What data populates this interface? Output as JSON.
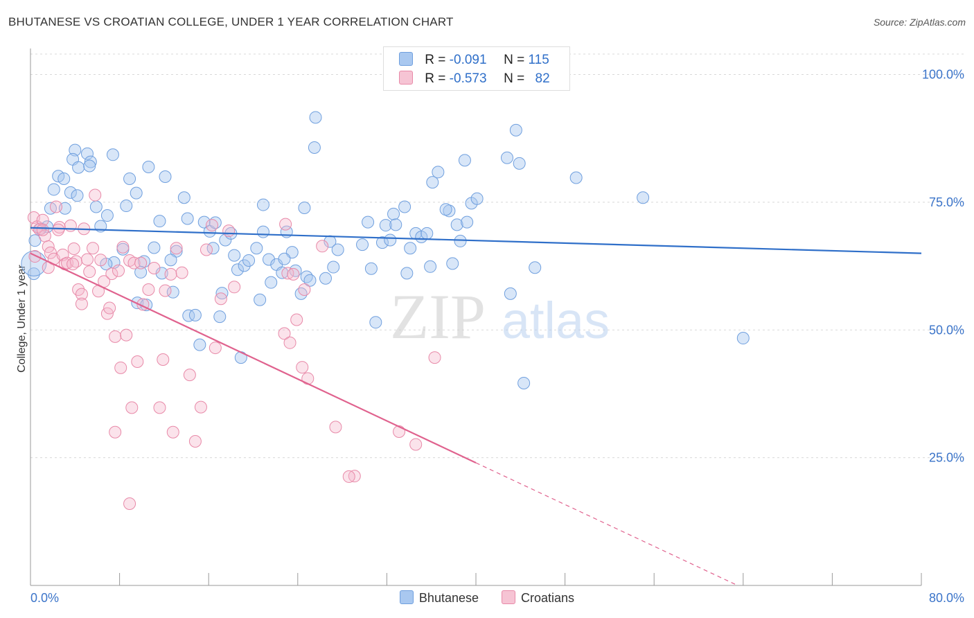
{
  "title": "BHUTANESE VS CROATIAN COLLEGE, UNDER 1 YEAR CORRELATION CHART",
  "source": "Source: ZipAtlas.com",
  "watermark": {
    "zip": "ZIP",
    "atlas": "atlas"
  },
  "legend_top": {
    "rows": [
      {
        "r_label": "R =",
        "r_value": "-0.091",
        "n_label": "N =",
        "n_value": "115"
      },
      {
        "r_label": "R =",
        "r_value": "-0.573",
        "n_label": "N =",
        "n_value": "82"
      }
    ]
  },
  "legend_bottom": {
    "items": [
      "Bhutanese",
      "Croatians"
    ]
  },
  "colors": {
    "blue_fill": "#a9c8f0",
    "blue_stroke": "#6f9fde",
    "blue_line": "#2f6fc9",
    "pink_fill": "#f6b8cc",
    "pink_stroke": "#e889a8",
    "pink_line": "#e0628e",
    "grid": "#d8d8d8",
    "tick_label": "#3b74c9"
  },
  "chart_data": {
    "type": "scatter",
    "title": "BHUTANESE VS CROATIAN COLLEGE, UNDER 1 YEAR CORRELATION CHART",
    "xlabel": "",
    "ylabel": "College, Under 1 year",
    "xlim": [
      0,
      80
    ],
    "ylim": [
      0,
      104
    ],
    "x_tick_labels": [
      "0.0%",
      "80.0%"
    ],
    "y_ticks": [
      25,
      50,
      75,
      100
    ],
    "y_tick_labels": [
      "25.0%",
      "50.0%",
      "75.0%",
      "100.0%"
    ],
    "grid": true,
    "legend_position": "top-center",
    "series": [
      {
        "name": "Bhutanese",
        "r": -0.091,
        "n": 115,
        "trend": {
          "x": [
            0,
            80
          ],
          "y": [
            70.0,
            65.0
          ],
          "dashed_from": null
        },
        "points": [
          [
            1.5,
            70.2
          ],
          [
            1.8,
            73.8
          ],
          [
            2.1,
            77.5
          ],
          [
            2.5,
            80.1
          ],
          [
            3.0,
            79.6
          ],
          [
            3.6,
            76.9
          ],
          [
            4.0,
            85.2
          ],
          [
            3.8,
            83.4
          ],
          [
            4.3,
            81.8
          ],
          [
            5.1,
            84.5
          ],
          [
            5.4,
            82.9
          ],
          [
            5.3,
            82.1
          ],
          [
            4.2,
            76.3
          ],
          [
            5.9,
            74.1
          ],
          [
            6.3,
            70.3
          ],
          [
            6.9,
            72.4
          ],
          [
            7.4,
            84.3
          ],
          [
            8.6,
            74.3
          ],
          [
            8.9,
            79.6
          ],
          [
            9.5,
            76.8
          ],
          [
            10.6,
            81.9
          ],
          [
            11.6,
            71.3
          ],
          [
            12.1,
            80.0
          ],
          [
            13.8,
            75.9
          ],
          [
            14.1,
            71.8
          ],
          [
            13.1,
            65.4
          ],
          [
            12.6,
            63.7
          ],
          [
            11.1,
            66.1
          ],
          [
            10.2,
            63.4
          ],
          [
            9.9,
            61.3
          ],
          [
            9.6,
            55.3
          ],
          [
            8.3,
            65.8
          ],
          [
            7.5,
            63.2
          ],
          [
            6.8,
            62.9
          ],
          [
            10.4,
            54.9
          ],
          [
            11.8,
            61.1
          ],
          [
            12.8,
            57.4
          ],
          [
            14.2,
            52.8
          ],
          [
            15.2,
            47.1
          ],
          [
            14.8,
            52.9
          ],
          [
            15.6,
            71.1
          ],
          [
            16.1,
            69.3
          ],
          [
            16.4,
            66.0
          ],
          [
            16.6,
            71.0
          ],
          [
            17.2,
            57.2
          ],
          [
            17.5,
            67.6
          ],
          [
            18.0,
            68.9
          ],
          [
            18.3,
            64.6
          ],
          [
            18.6,
            61.8
          ],
          [
            19.2,
            62.6
          ],
          [
            19.6,
            63.6
          ],
          [
            20.3,
            66.0
          ],
          [
            20.6,
            55.9
          ],
          [
            20.9,
            74.5
          ],
          [
            21.4,
            63.8
          ],
          [
            21.6,
            59.3
          ],
          [
            22.1,
            62.8
          ],
          [
            22.6,
            61.2
          ],
          [
            23.0,
            69.2
          ],
          [
            23.5,
            65.2
          ],
          [
            23.8,
            61.6
          ],
          [
            24.3,
            57.1
          ],
          [
            24.6,
            73.9
          ],
          [
            24.8,
            60.4
          ],
          [
            17.0,
            52.6
          ],
          [
            18.9,
            44.6
          ],
          [
            25.1,
            59.7
          ],
          [
            25.6,
            91.6
          ],
          [
            25.5,
            85.7
          ],
          [
            26.9,
            67.3
          ],
          [
            27.6,
            65.7
          ],
          [
            27.2,
            62.3
          ],
          [
            29.8,
            66.7
          ],
          [
            30.3,
            71.1
          ],
          [
            30.6,
            62.0
          ],
          [
            31.6,
            67.1
          ],
          [
            31.9,
            70.5
          ],
          [
            32.3,
            67.6
          ],
          [
            32.6,
            72.7
          ],
          [
            32.8,
            70.6
          ],
          [
            33.6,
            74.1
          ],
          [
            33.8,
            61.1
          ],
          [
            34.1,
            66.0
          ],
          [
            34.6,
            68.9
          ],
          [
            35.1,
            68.2
          ],
          [
            35.6,
            68.9
          ],
          [
            36.1,
            78.9
          ],
          [
            36.6,
            80.9
          ],
          [
            37.6,
            73.3
          ],
          [
            37.3,
            73.6
          ],
          [
            37.9,
            63.0
          ],
          [
            38.3,
            70.6
          ],
          [
            38.6,
            67.4
          ],
          [
            39.2,
            71.1
          ],
          [
            39.6,
            74.8
          ],
          [
            40.1,
            75.7
          ],
          [
            39.0,
            83.2
          ],
          [
            42.8,
            83.7
          ],
          [
            43.6,
            89.1
          ],
          [
            43.9,
            82.6
          ],
          [
            45.3,
            62.2
          ],
          [
            49.0,
            79.8
          ],
          [
            55.0,
            75.9
          ],
          [
            64.0,
            48.4
          ],
          [
            43.1,
            57.1
          ],
          [
            44.3,
            39.6
          ],
          [
            31.0,
            51.5
          ],
          [
            0.3,
            61.0
          ],
          [
            0.4,
            67.5
          ],
          [
            3.1,
            73.8
          ],
          [
            0.9,
            69.8
          ],
          [
            22.8,
            63.9
          ],
          [
            26.5,
            60.1
          ],
          [
            20.9,
            69.2
          ],
          [
            35.9,
            62.4
          ]
        ]
      },
      {
        "name": "Croatians",
        "r": -0.573,
        "n": 82,
        "trend": {
          "x": [
            0,
            40,
            63.5
          ],
          "y": [
            65.0,
            24.0,
            0.0
          ],
          "dashed_from": 40
        },
        "points": [
          [
            0.3,
            72.0
          ],
          [
            0.6,
            70.2
          ],
          [
            0.8,
            69.7
          ],
          [
            1.1,
            71.5
          ],
          [
            1.3,
            68.4
          ],
          [
            1.6,
            66.3
          ],
          [
            1.8,
            65.1
          ],
          [
            2.1,
            63.9
          ],
          [
            2.3,
            74.1
          ],
          [
            2.6,
            70.1
          ],
          [
            2.9,
            64.7
          ],
          [
            3.1,
            62.9
          ],
          [
            3.3,
            63.1
          ],
          [
            3.6,
            70.4
          ],
          [
            3.9,
            65.9
          ],
          [
            4.1,
            63.4
          ],
          [
            4.3,
            57.9
          ],
          [
            4.6,
            57.0
          ],
          [
            4.8,
            69.8
          ],
          [
            5.1,
            63.8
          ],
          [
            5.3,
            61.4
          ],
          [
            5.6,
            66.0
          ],
          [
            5.8,
            76.4
          ],
          [
            6.1,
            57.6
          ],
          [
            6.3,
            63.7
          ],
          [
            6.6,
            59.5
          ],
          [
            6.9,
            53.2
          ],
          [
            7.1,
            54.3
          ],
          [
            7.3,
            61.0
          ],
          [
            7.6,
            48.7
          ],
          [
            7.9,
            61.6
          ],
          [
            8.1,
            42.6
          ],
          [
            8.3,
            66.2
          ],
          [
            8.6,
            49.0
          ],
          [
            8.9,
            63.6
          ],
          [
            9.1,
            34.8
          ],
          [
            9.3,
            63.1
          ],
          [
            9.6,
            43.8
          ],
          [
            9.9,
            63.1
          ],
          [
            10.1,
            55.0
          ],
          [
            10.6,
            57.9
          ],
          [
            11.1,
            62.1
          ],
          [
            11.6,
            34.8
          ],
          [
            11.9,
            44.2
          ],
          [
            12.1,
            57.7
          ],
          [
            12.6,
            60.9
          ],
          [
            12.8,
            30.0
          ],
          [
            13.1,
            66.0
          ],
          [
            13.6,
            61.2
          ],
          [
            14.3,
            41.2
          ],
          [
            14.8,
            28.2
          ],
          [
            15.3,
            34.9
          ],
          [
            15.8,
            65.7
          ],
          [
            16.3,
            70.5
          ],
          [
            16.6,
            46.5
          ],
          [
            17.1,
            56.1
          ],
          [
            17.8,
            69.4
          ],
          [
            18.3,
            58.4
          ],
          [
            22.9,
            70.7
          ],
          [
            23.1,
            61.1
          ],
          [
            23.6,
            60.9
          ],
          [
            22.8,
            49.3
          ],
          [
            23.9,
            52.0
          ],
          [
            23.3,
            47.5
          ],
          [
            24.6,
            57.9
          ],
          [
            24.4,
            42.7
          ],
          [
            24.9,
            40.5
          ],
          [
            29.1,
            21.4
          ],
          [
            28.6,
            21.3
          ],
          [
            26.2,
            66.4
          ],
          [
            27.4,
            31.0
          ],
          [
            33.1,
            30.1
          ],
          [
            34.6,
            27.6
          ],
          [
            36.3,
            44.6
          ],
          [
            8.9,
            16.0
          ],
          [
            7.6,
            30.0
          ],
          [
            1.1,
            69.6
          ],
          [
            0.4,
            64.4
          ],
          [
            4.6,
            55.1
          ],
          [
            1.6,
            62.2
          ],
          [
            2.5,
            69.6
          ],
          [
            3.8,
            62.9
          ]
        ]
      }
    ]
  }
}
